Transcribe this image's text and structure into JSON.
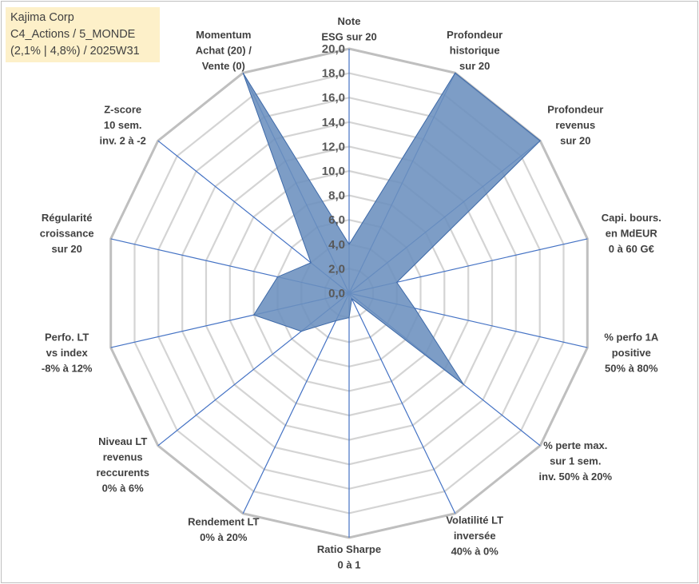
{
  "title_box": {
    "line1": "Kajima Corp",
    "line2": "C4_Actions / 5_MONDE",
    "line3": "(2,1% | 4,8%) / 2025W31",
    "background": "#fdf0c9"
  },
  "chart_data": {
    "type": "radar",
    "title": "",
    "rlim": [
      0,
      20
    ],
    "tick_step": 2,
    "tick_labels": [
      "0,0",
      "2,0",
      "4,0",
      "6,0",
      "8,0",
      "10,0",
      "12,0",
      "14,0",
      "16,0",
      "18,0",
      "20,0"
    ],
    "grid": true,
    "legend": "none",
    "colors": {
      "fill": "#6b8fbe",
      "stroke": "#3d69a8",
      "spoke": "#4472c4",
      "grid": "#d4d4d4",
      "outer": "#bfbfbf"
    },
    "axes": [
      {
        "label": [
          "Note",
          "ESG sur 20"
        ],
        "value": 4.0
      },
      {
        "label": [
          "Profondeur",
          "historique",
          "sur 20"
        ],
        "value": 20.0
      },
      {
        "label": [
          "Profondeur",
          "revenus",
          "sur 20"
        ],
        "value": 20.0
      },
      {
        "label": [
          "Capi. bours.",
          "en MdEUR",
          "0 à 60 G€"
        ],
        "value": 4.0
      },
      {
        "label": [
          "% perfo 1A",
          "positive",
          "50% à 80%"
        ],
        "value": 5.5
      },
      {
        "label": [
          "% perte max.",
          "sur 1 sem.",
          "inv. 50% à 20%"
        ],
        "value": 12.0
      },
      {
        "label": [
          "Volatilité LT",
          "inversée",
          "40% à 0%"
        ],
        "value": 0.5
      },
      {
        "label": [
          "Ratio Sharpe",
          "0 à 1"
        ],
        "value": 2.0
      },
      {
        "label": [
          "Rendement LT",
          "0% à 20%"
        ],
        "value": 2.5
      },
      {
        "label": [
          "Niveau LT",
          "revenus",
          "reccurents",
          "0% à 6%"
        ],
        "value": 5.0
      },
      {
        "label": [
          "Perfo. LT",
          "vs index",
          "-8% à 12%"
        ],
        "value": 8.0
      },
      {
        "label": [
          "Régularité",
          "croissance",
          "sur 20"
        ],
        "value": 6.0
      },
      {
        "label": [
          "Z-score",
          "10 sem.",
          "inv. 2 à -2"
        ],
        "value": 4.0
      },
      {
        "label": [
          "Momentum",
          "Achat (20) /",
          "Vente (0)"
        ],
        "value": 20.0
      }
    ]
  }
}
